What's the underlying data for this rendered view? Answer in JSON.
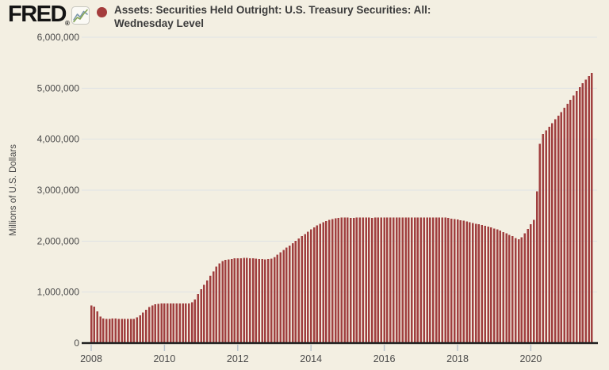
{
  "header": {
    "logo_text": "FRED",
    "registered_mark": "®",
    "logo_icon": "line-chart-icon"
  },
  "legend": {
    "marker_color": "#a43c3c",
    "title_line1": "Assets: Securities Held Outright: U.S. Treasury Securities: All:",
    "title_line2": "Wednesday Level"
  },
  "colors": {
    "background": "#f3efe2",
    "bar": "#a03f3f",
    "axis_line": "#1f1f1f",
    "gridline": "#dfe3e5",
    "tick_mark": "#b7c3cd",
    "axis_text": "#4a4a4a"
  },
  "chart_data": {
    "type": "bar",
    "title": "Assets: Securities Held Outright: U.S. Treasury Securities: All: Wednesday Level",
    "xlabel": "",
    "ylabel": "Millions of U.S. Dollars",
    "ylim": [
      0,
      6000000
    ],
    "y_ticks": [
      "0",
      "1,000,000",
      "2,000,000",
      "3,000,000",
      "4,000,000",
      "5,000,000",
      "6,000,000"
    ],
    "x_ticks": [
      "2008",
      "2010",
      "2012",
      "2014",
      "2016",
      "2018",
      "2020"
    ],
    "x_tick_years": [
      2008,
      2010,
      2012,
      2014,
      2016,
      2018,
      2020
    ],
    "grid": "horizontal-only",
    "legend_position": "top",
    "frequency": "monthly",
    "start_period": "2008-01",
    "end_period": "2021-09",
    "series": [
      {
        "name": "Assets: Securities Held Outright: U.S. Treasury Securities: All: Wednesday Level",
        "color": "#a03f3f",
        "values": [
          740000,
          713000,
          620000,
          520000,
          480000,
          478000,
          478000,
          479000,
          480000,
          476000,
          476000,
          476000,
          475000,
          475000,
          475000,
          505000,
          545000,
          600000,
          655000,
          705000,
          742000,
          765000,
          772000,
          776000,
          776000,
          776000,
          776000,
          776000,
          776000,
          776000,
          776000,
          777000,
          780000,
          800000,
          855000,
          960000,
          1055000,
          1140000,
          1230000,
          1320000,
          1410000,
          1500000,
          1565000,
          1610000,
          1630000,
          1640000,
          1650000,
          1660000,
          1663000,
          1665000,
          1668000,
          1670000,
          1667000,
          1663000,
          1655000,
          1650000,
          1645000,
          1643000,
          1648000,
          1657000,
          1690000,
          1735000,
          1780000,
          1825000,
          1870000,
          1915000,
          1960000,
          2005000,
          2050000,
          2095000,
          2140000,
          2185000,
          2228000,
          2270000,
          2305000,
          2340000,
          2370000,
          2395000,
          2415000,
          2430000,
          2445000,
          2458000,
          2460000,
          2461000,
          2460000,
          2459000,
          2459000,
          2460000,
          2461000,
          2461000,
          2460000,
          2460000,
          2459000,
          2460000,
          2460000,
          2461000,
          2461000,
          2460000,
          2460000,
          2461000,
          2461000,
          2462000,
          2463000,
          2463000,
          2463000,
          2463000,
          2464000,
          2464000,
          2464000,
          2465000,
          2465000,
          2465000,
          2465000,
          2466000,
          2466000,
          2465000,
          2461000,
          2454000,
          2442000,
          2436000,
          2424000,
          2410000,
          2398000,
          2384000,
          2370000,
          2356000,
          2342000,
          2328000,
          2314000,
          2300000,
          2285000,
          2270000,
          2250000,
          2230000,
          2205000,
          2180000,
          2155000,
          2125000,
          2095000,
          2060000,
          2040000,
          2075000,
          2155000,
          2240000,
          2330000,
          2420000,
          2980000,
          3910000,
          4105000,
          4170000,
          4240000,
          4310000,
          4390000,
          4460000,
          4535000,
          4615000,
          4695000,
          4775000,
          4860000,
          4940000,
          5020000,
          5095000,
          5165000,
          5235000,
          5300000
        ]
      }
    ]
  }
}
